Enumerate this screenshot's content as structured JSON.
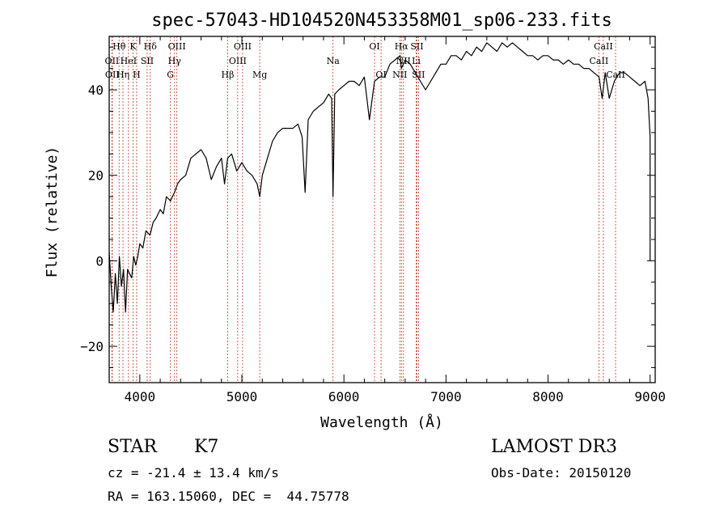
{
  "chart_data": {
    "type": "line",
    "title": "spec-57043-HD104520N453358M01_sp06-233.fits",
    "xlabel": "Wavelength (Å)",
    "ylabel": "Flux (relative)",
    "xlim": [
      3700,
      9050
    ],
    "ylim": [
      -28.5,
      52.5
    ],
    "xticks": [
      4000,
      5000,
      6000,
      7000,
      8000,
      9000
    ],
    "yticks": [
      -20,
      0,
      20,
      40
    ],
    "grid": false,
    "series": [
      {
        "color": "#000000",
        "x": [
          3700,
          3720,
          3740,
          3760,
          3780,
          3800,
          3820,
          3840,
          3860,
          3880,
          3900,
          3920,
          3940,
          3960,
          3980,
          4000,
          4030,
          4060,
          4100,
          4130,
          4160,
          4200,
          4230,
          4260,
          4300,
          4340,
          4370,
          4400,
          4450,
          4500,
          4550,
          4600,
          4650,
          4700,
          4750,
          4800,
          4830,
          4860,
          4900,
          4950,
          5000,
          5050,
          5100,
          5150,
          5175,
          5200,
          5250,
          5300,
          5350,
          5400,
          5450,
          5500,
          5550,
          5590,
          5620,
          5650,
          5700,
          5750,
          5800,
          5850,
          5880,
          5893,
          5910,
          5950,
          6000,
          6050,
          6100,
          6150,
          6200,
          6250,
          6300,
          6350,
          6400,
          6450,
          6500,
          6550,
          6563,
          6600,
          6650,
          6700,
          6750,
          6800,
          6850,
          6900,
          6950,
          7000,
          7050,
          7100,
          7150,
          7200,
          7250,
          7300,
          7350,
          7400,
          7450,
          7500,
          7550,
          7600,
          7650,
          7700,
          7750,
          7800,
          7850,
          7900,
          7950,
          8000,
          8050,
          8100,
          8150,
          8200,
          8250,
          8300,
          8350,
          8400,
          8450,
          8500,
          8530,
          8560,
          8600,
          8650,
          8700,
          8750,
          8800,
          8850,
          8900,
          8950,
          8980,
          9000,
          9000
        ],
        "values": [
          2,
          -6,
          -12,
          -3,
          -10,
          1,
          -6,
          -2,
          -12,
          -2,
          -3,
          -4,
          1,
          -1,
          1,
          4,
          3,
          7,
          6,
          9,
          10,
          12,
          11,
          15,
          14,
          16,
          18,
          19,
          20,
          24,
          25,
          26,
          24,
          19,
          22,
          24,
          18,
          24,
          25,
          21,
          23,
          21,
          20,
          18,
          15,
          20,
          24,
          28,
          30,
          31,
          31,
          31,
          32,
          29,
          16,
          33,
          35,
          36,
          37,
          39,
          38,
          15,
          39,
          40,
          41,
          42,
          42,
          41,
          43,
          33,
          42,
          43,
          43,
          46,
          47,
          48,
          45,
          47,
          46,
          44,
          42,
          40,
          42,
          44,
          46,
          46,
          48,
          48,
          47,
          49,
          48,
          50,
          49,
          51,
          50,
          49,
          51,
          50,
          51,
          50,
          49,
          48,
          48,
          47,
          48,
          48,
          47,
          47,
          46,
          47,
          46,
          46,
          45,
          45,
          44,
          43,
          38,
          44,
          38,
          42,
          44,
          44,
          43,
          42,
          41,
          42,
          38,
          29,
          0
        ]
      }
    ],
    "annotations": [
      {
        "label": "Hθ",
        "x": 3797,
        "row": 0
      },
      {
        "label": "K",
        "x": 3934,
        "row": 0
      },
      {
        "label": "Hδ",
        "x": 4102,
        "row": 0
      },
      {
        "label": "OIII",
        "x": 4363,
        "row": 0
      },
      {
        "label": "OIII",
        "x": 5007,
        "row": 0
      },
      {
        "label": "OI",
        "x": 6300,
        "row": 0
      },
      {
        "label": "Hα",
        "x": 6563,
        "row": 0
      },
      {
        "label": "SII",
        "x": 6716,
        "row": 0
      },
      {
        "label": "CaII",
        "x": 8542,
        "row": 0
      },
      {
        "label": "OII",
        "x": 3727,
        "row": 1
      },
      {
        "label": "HeI",
        "x": 3889,
        "row": 1
      },
      {
        "label": "SII",
        "x": 4072,
        "row": 1
      },
      {
        "label": "Hγ",
        "x": 4340,
        "row": 1
      },
      {
        "label": "OIII",
        "x": 4959,
        "row": 1
      },
      {
        "label": "Na",
        "x": 5893,
        "row": 1
      },
      {
        "label": "NII",
        "x": 6583,
        "row": 1
      },
      {
        "label": "Li",
        "x": 6708,
        "row": 1
      },
      {
        "label": "CaII",
        "x": 8498,
        "row": 1
      },
      {
        "label": "OII",
        "x": 3730,
        "row": 2
      },
      {
        "label": "Hη",
        "x": 3835,
        "row": 2
      },
      {
        "label": "H",
        "x": 3969,
        "row": 2
      },
      {
        "label": "G",
        "x": 4300,
        "row": 2
      },
      {
        "label": "Hβ",
        "x": 4861,
        "row": 2
      },
      {
        "label": "Mg",
        "x": 5175,
        "row": 2
      },
      {
        "label": "OI",
        "x": 6364,
        "row": 2
      },
      {
        "label": "NII",
        "x": 6548,
        "row": 2
      },
      {
        "label": "SII",
        "x": 6731,
        "row": 2
      },
      {
        "label": "CaII",
        "x": 8662,
        "row": 2
      }
    ],
    "line_markers": [
      3727,
      3730,
      3797,
      3835,
      3889,
      3934,
      3969,
      4072,
      4102,
      4300,
      4340,
      4363,
      4861,
      4959,
      5007,
      5175,
      5893,
      6300,
      6364,
      6548,
      6563,
      6583,
      6708,
      6716,
      6731,
      8498,
      8542,
      8662
    ]
  },
  "info": {
    "object_class": "STAR",
    "subclass": "K7",
    "survey": "LAMOST DR3",
    "redshift": "cz = -21.4 ± 13.4 km/s",
    "obs_date": "Obs-Date: 20150120",
    "coords": "RA = 163.15060, DEC =  44.75778"
  }
}
